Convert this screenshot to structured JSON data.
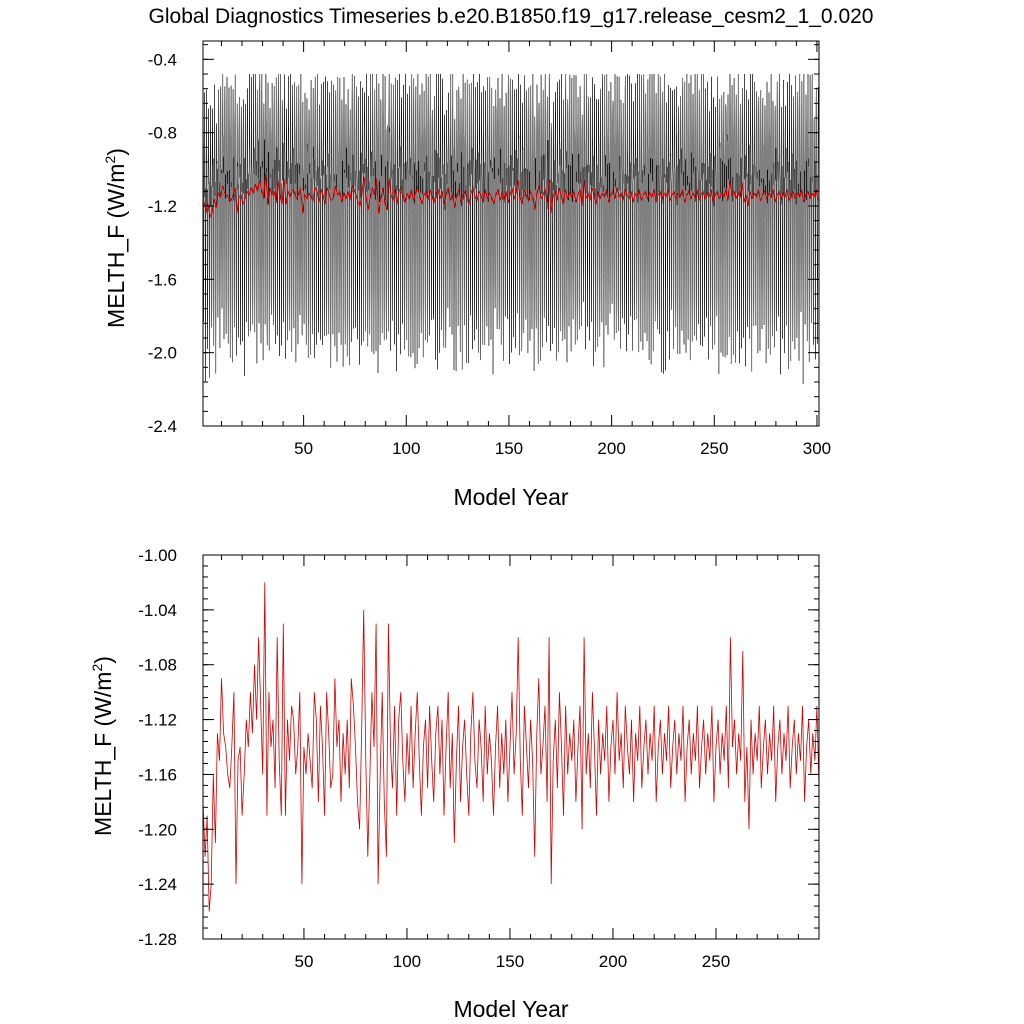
{
  "title": "Global Diagnostics Timeseries b.e20.B1850.f19_g17.release_cesm2_1_0.020",
  "colors": {
    "monthly": "#000000",
    "annual": "#cc0000",
    "frame": "#000000"
  },
  "chart_data": [
    {
      "type": "line",
      "xlabel": "Model Year",
      "ylabel": "MELTH_F (W/m",
      "ylabel_superscript": "2",
      "ylabel_close": ")",
      "xlim": [
        1,
        301
      ],
      "ylim": [
        -2.4,
        -0.3
      ],
      "xticks": [
        50,
        100,
        150,
        200,
        250,
        300
      ],
      "yticks": [
        -2.4,
        -2.0,
        -1.6,
        -1.2,
        -0.8,
        -0.4
      ],
      "xtick_labels": [
        "50",
        "100",
        "150",
        "200",
        "250",
        "300"
      ],
      "ytick_labels": [
        "-2.4",
        "-2.0",
        "-1.6",
        "-1.2",
        "-0.8",
        "-0.4"
      ],
      "series": [
        {
          "resolution": "monthly",
          "seasonal_cycle": [
            -1.05,
            -1.3,
            -1.75,
            -2.0,
            -1.7,
            -1.3,
            -0.95,
            -0.75,
            -0.6,
            -0.85,
            -1.0,
            -1.15
          ],
          "noise": 0.18
        },
        {
          "resolution": "annual",
          "values": "see panel 2 series",
          "range": [
            -1.27,
            -1.02
          ]
        }
      ]
    },
    {
      "type": "line",
      "xlabel": "Model Year",
      "ylabel": "MELTH_F (W/m",
      "ylabel_superscript": "2",
      "ylabel_close": ")",
      "xlim": [
        1,
        300
      ],
      "ylim": [
        -1.28,
        -1.0
      ],
      "xticks": [
        50,
        100,
        150,
        200,
        250
      ],
      "yticks": [
        -1.28,
        -1.24,
        -1.2,
        -1.16,
        -1.12,
        -1.08,
        -1.04,
        -1.0
      ],
      "xtick_labels": [
        "50",
        "100",
        "150",
        "200",
        "250"
      ],
      "ytick_labels": [
        "-1.28",
        "-1.24",
        "-1.20",
        "-1.16",
        "-1.12",
        "-1.08",
        "-1.04",
        "-1.00"
      ],
      "series": [
        {
          "resolution": "annual",
          "x_start": 1,
          "values": [
            -1.18,
            -1.22,
            -1.19,
            -1.26,
            -1.24,
            -1.16,
            -1.21,
            -1.13,
            -1.15,
            -1.09,
            -1.13,
            -1.14,
            -1.16,
            -1.17,
            -1.14,
            -1.1,
            -1.24,
            -1.15,
            -1.14,
            -1.19,
            -1.16,
            -1.12,
            -1.14,
            -1.1,
            -1.13,
            -1.08,
            -1.12,
            -1.06,
            -1.11,
            -1.16,
            -1.02,
            -1.19,
            -1.1,
            -1.14,
            -1.12,
            -1.17,
            -1.06,
            -1.15,
            -1.19,
            -1.05,
            -1.19,
            -1.12,
            -1.15,
            -1.11,
            -1.12,
            -1.16,
            -1.14,
            -1.1,
            -1.24,
            -1.14,
            -1.16,
            -1.13,
            -1.15,
            -1.17,
            -1.1,
            -1.12,
            -1.18,
            -1.11,
            -1.14,
            -1.19,
            -1.1,
            -1.13,
            -1.17,
            -1.16,
            -1.09,
            -1.14,
            -1.12,
            -1.18,
            -1.13,
            -1.16,
            -1.12,
            -1.17,
            -1.09,
            -1.11,
            -1.14,
            -1.18,
            -1.2,
            -1.13,
            -1.04,
            -1.15,
            -1.22,
            -1.16,
            -1.1,
            -1.14,
            -1.05,
            -1.24,
            -1.16,
            -1.1,
            -1.18,
            -1.22,
            -1.05,
            -1.14,
            -1.17,
            -1.11,
            -1.19,
            -1.12,
            -1.1,
            -1.15,
            -1.18,
            -1.13,
            -1.16,
            -1.11,
            -1.17,
            -1.13,
            -1.1,
            -1.15,
            -1.19,
            -1.14,
            -1.12,
            -1.17,
            -1.11,
            -1.15,
            -1.18,
            -1.13,
            -1.11,
            -1.16,
            -1.12,
            -1.19,
            -1.14,
            -1.1,
            -1.17,
            -1.13,
            -1.21,
            -1.15,
            -1.11,
            -1.18,
            -1.14,
            -1.12,
            -1.16,
            -1.19,
            -1.13,
            -1.1,
            -1.15,
            -1.17,
            -1.12,
            -1.14,
            -1.18,
            -1.11,
            -1.16,
            -1.13,
            -1.15,
            -1.19,
            -1.14,
            -1.11,
            -1.17,
            -1.13,
            -1.16,
            -1.12,
            -1.18,
            -1.14,
            -1.1,
            -1.16,
            -1.13,
            -1.06,
            -1.15,
            -1.19,
            -1.11,
            -1.14,
            -1.17,
            -1.12,
            -1.15,
            -1.22,
            -1.13,
            -1.09,
            -1.16,
            -1.14,
            -1.11,
            -1.18,
            -1.06,
            -1.24,
            -1.15,
            -1.12,
            -1.17,
            -1.1,
            -1.14,
            -1.19,
            -1.11,
            -1.16,
            -1.13,
            -1.15,
            -1.12,
            -1.18,
            -1.14,
            -1.11,
            -1.2,
            -1.06,
            -1.16,
            -1.13,
            -1.17,
            -1.1,
            -1.14,
            -1.19,
            -1.12,
            -1.16,
            -1.13,
            -1.15,
            -1.11,
            -1.18,
            -1.14,
            -1.12,
            -1.16,
            -1.1,
            -1.15,
            -1.13,
            -1.17,
            -1.11,
            -1.14,
            -1.16,
            -1.12,
            -1.18,
            -1.13,
            -1.15,
            -1.11,
            -1.17,
            -1.14,
            -1.12,
            -1.16,
            -1.13,
            -1.15,
            -1.11,
            -1.18,
            -1.14,
            -1.12,
            -1.16,
            -1.13,
            -1.15,
            -1.11,
            -1.17,
            -1.14,
            -1.12,
            -1.16,
            -1.13,
            -1.15,
            -1.11,
            -1.18,
            -1.14,
            -1.12,
            -1.16,
            -1.13,
            -1.15,
            -1.11,
            -1.17,
            -1.14,
            -1.12,
            -1.16,
            -1.13,
            -1.15,
            -1.11,
            -1.18,
            -1.14,
            -1.12,
            -1.16,
            -1.13,
            -1.15,
            -1.11,
            -1.17,
            -1.06,
            -1.14,
            -1.12,
            -1.16,
            -1.13,
            -1.15,
            -1.07,
            -1.18,
            -1.14,
            -1.2,
            -1.12,
            -1.16,
            -1.13,
            -1.15,
            -1.11,
            -1.17,
            -1.14,
            -1.12,
            -1.16,
            -1.13,
            -1.15,
            -1.11,
            -1.18,
            -1.14,
            -1.12,
            -1.16,
            -1.13,
            -1.15,
            -1.11,
            -1.17,
            -1.14,
            -1.12,
            -1.16,
            -1.13,
            -1.15,
            -1.11,
            -1.18,
            -1.14,
            -1.12,
            -1.16,
            -1.13,
            -1.15,
            -1.11,
            -1.17
          ]
        }
      ]
    }
  ]
}
